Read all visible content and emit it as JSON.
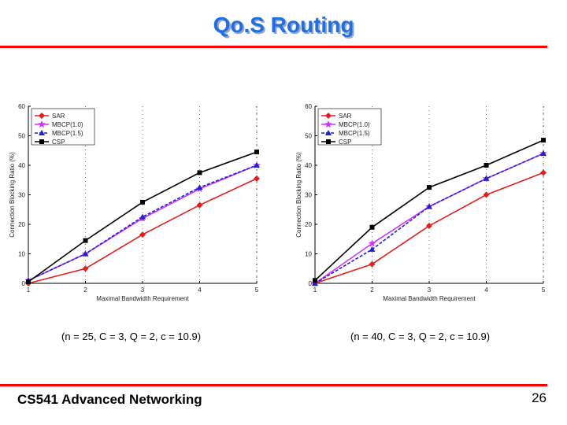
{
  "slide": {
    "title": "Qo.S Routing",
    "footer": "CS541 Advanced Networking",
    "page_number": "26",
    "caption_left": "(n = 25, C = 3, Q = 2, c = 10.9)",
    "caption_right": "(n = 40, C = 3, Q = 2, c = 10.9)"
  },
  "colors": {
    "title": "#1f6fe0",
    "rule": "#ff0000",
    "SAR": "#e0201c",
    "MBCP10": "#cc33ff",
    "MBCP15": "#2222cc",
    "CSP": "#000000"
  },
  "chart_data": [
    {
      "type": "line",
      "xlabel": "Maximal Bandwidth Requirement",
      "ylabel": "Connection Blocking Ratio (%)",
      "x": [
        1,
        2,
        3,
        4,
        5
      ],
      "xlim": [
        1,
        5
      ],
      "ylim": [
        0,
        60
      ],
      "xticks": [
        1,
        2,
        3,
        4,
        5
      ],
      "yticks": [
        0,
        10,
        20,
        30,
        40,
        50,
        60
      ],
      "grid": "dotted vertical at x ticks",
      "legend": "top-left",
      "series": [
        {
          "name": "SAR",
          "values": [
            0,
            5,
            16.5,
            26.5,
            35.5
          ],
          "color": "#e0201c",
          "marker": "diamond",
          "dash": "solid"
        },
        {
          "name": "MBCP(1.0)",
          "values": [
            1,
            10,
            22,
            32,
            40
          ],
          "color": "#cc33ff",
          "marker": "star",
          "dash": "solid"
        },
        {
          "name": "MBCP(1.5)",
          "values": [
            1,
            10,
            22.5,
            32.5,
            40
          ],
          "color": "#2222cc",
          "marker": "triangle",
          "dash": "dashed"
        },
        {
          "name": "CSP",
          "values": [
            0.5,
            14.5,
            27.5,
            37.5,
            44.5
          ],
          "color": "#000000",
          "marker": "square",
          "dash": "solid"
        }
      ]
    },
    {
      "type": "line",
      "xlabel": "Maximal Bandwidth Requirement",
      "ylabel": "Connection Blocking Ratio (%)",
      "x": [
        1,
        2,
        3,
        4,
        5
      ],
      "xlim": [
        1,
        5
      ],
      "ylim": [
        0,
        60
      ],
      "xticks": [
        1,
        2,
        3,
        4,
        5
      ],
      "yticks": [
        0,
        10,
        20,
        30,
        40,
        50,
        60
      ],
      "grid": "dotted vertical at x ticks",
      "legend": "top-left",
      "series": [
        {
          "name": "SAR",
          "values": [
            0,
            6.5,
            19.5,
            30,
            37.5
          ],
          "color": "#e0201c",
          "marker": "diamond",
          "dash": "solid"
        },
        {
          "name": "MBCP(1.0)",
          "values": [
            0,
            13.5,
            26,
            35.5,
            44
          ],
          "color": "#cc33ff",
          "marker": "star",
          "dash": "solid"
        },
        {
          "name": "MBCP(1.5)",
          "values": [
            0,
            11.5,
            26,
            35.5,
            44
          ],
          "color": "#2222cc",
          "marker": "triangle",
          "dash": "dashed"
        },
        {
          "name": "CSP",
          "values": [
            1,
            19,
            32.5,
            40,
            48.5
          ],
          "color": "#000000",
          "marker": "square",
          "dash": "solid"
        }
      ]
    }
  ]
}
